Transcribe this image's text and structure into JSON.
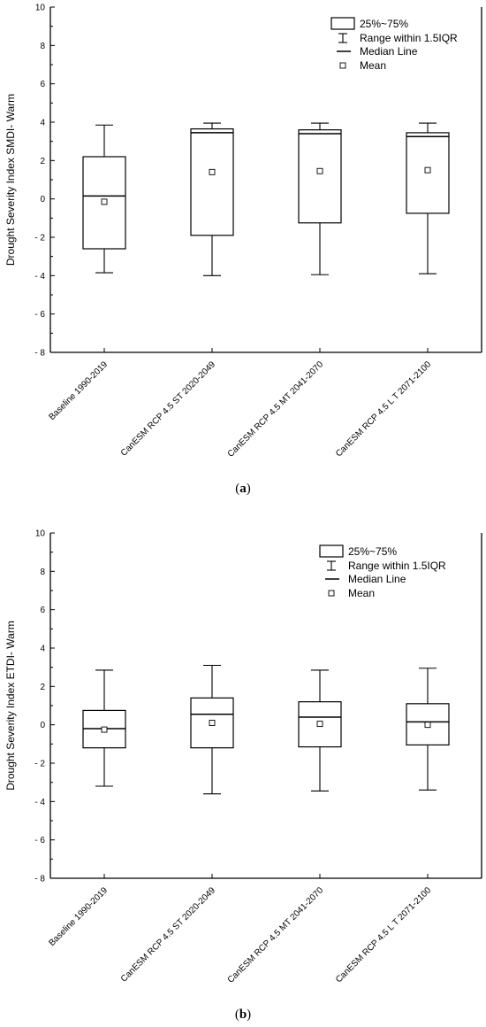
{
  "chart_data": [
    {
      "type": "box",
      "panel_label": "a",
      "ylabel": "Drought Severity Index SMDI- Warm",
      "ylim": [
        -8,
        10
      ],
      "yticks": [
        10,
        8,
        6,
        4,
        2,
        0,
        -2,
        -4,
        -6,
        -8
      ],
      "categories": [
        "Baseline 1990-2019",
        "CanESM RCP 4.5 ST 2020-2049",
        "CanESM RCP 4.5 MT 2041-2070",
        "CanESM RCP 4.5 L T 2071-2100"
      ],
      "boxes": [
        {
          "whisker_low": -3.85,
          "q1": -2.6,
          "median": 0.15,
          "q3": 2.2,
          "whisker_high": 3.85,
          "mean": -0.15
        },
        {
          "whisker_low": -4.0,
          "q1": -1.9,
          "median": 3.45,
          "q3": 3.65,
          "whisker_high": 3.95,
          "mean": 1.4
        },
        {
          "whisker_low": -3.95,
          "q1": -1.25,
          "median": 3.4,
          "q3": 3.6,
          "whisker_high": 3.95,
          "mean": 1.45
        },
        {
          "whisker_low": -3.9,
          "q1": -0.75,
          "median": 3.25,
          "q3": 3.45,
          "whisker_high": 3.95,
          "mean": 1.5
        }
      ],
      "legend": {
        "position": "top-right",
        "items": [
          "25%~75%",
          "Range within 1.5IQR",
          "Median Line",
          "Mean"
        ]
      }
    },
    {
      "type": "box",
      "panel_label": "b",
      "ylabel": "Drought Severity Index ETDI- Warm",
      "ylim": [
        -8,
        10
      ],
      "yticks": [
        10,
        8,
        6,
        4,
        2,
        0,
        -2,
        -4,
        -6,
        -8
      ],
      "categories": [
        "Baseline 1990-2019",
        "CanESM RCP 4.5 ST 2020-2049",
        "CanESM RCP 4.5 MT 2041-2070",
        "CanESM RCP 4.5 L T 2071-2100"
      ],
      "boxes": [
        {
          "whisker_low": -3.2,
          "q1": -1.2,
          "median": -0.2,
          "q3": 0.75,
          "whisker_high": 2.85,
          "mean": -0.25
        },
        {
          "whisker_low": -3.6,
          "q1": -1.2,
          "median": 0.55,
          "q3": 1.4,
          "whisker_high": 3.1,
          "mean": 0.1
        },
        {
          "whisker_low": -3.45,
          "q1": -1.15,
          "median": 0.4,
          "q3": 1.2,
          "whisker_high": 2.85,
          "mean": 0.05
        },
        {
          "whisker_low": -3.4,
          "q1": -1.05,
          "median": 0.15,
          "q3": 1.1,
          "whisker_high": 2.95,
          "mean": 0.0
        }
      ],
      "legend": {
        "position": "top-right",
        "items": [
          "25%~75%",
          "Range within 1.5IQR",
          "Median Line",
          "Mean"
        ]
      }
    }
  ]
}
